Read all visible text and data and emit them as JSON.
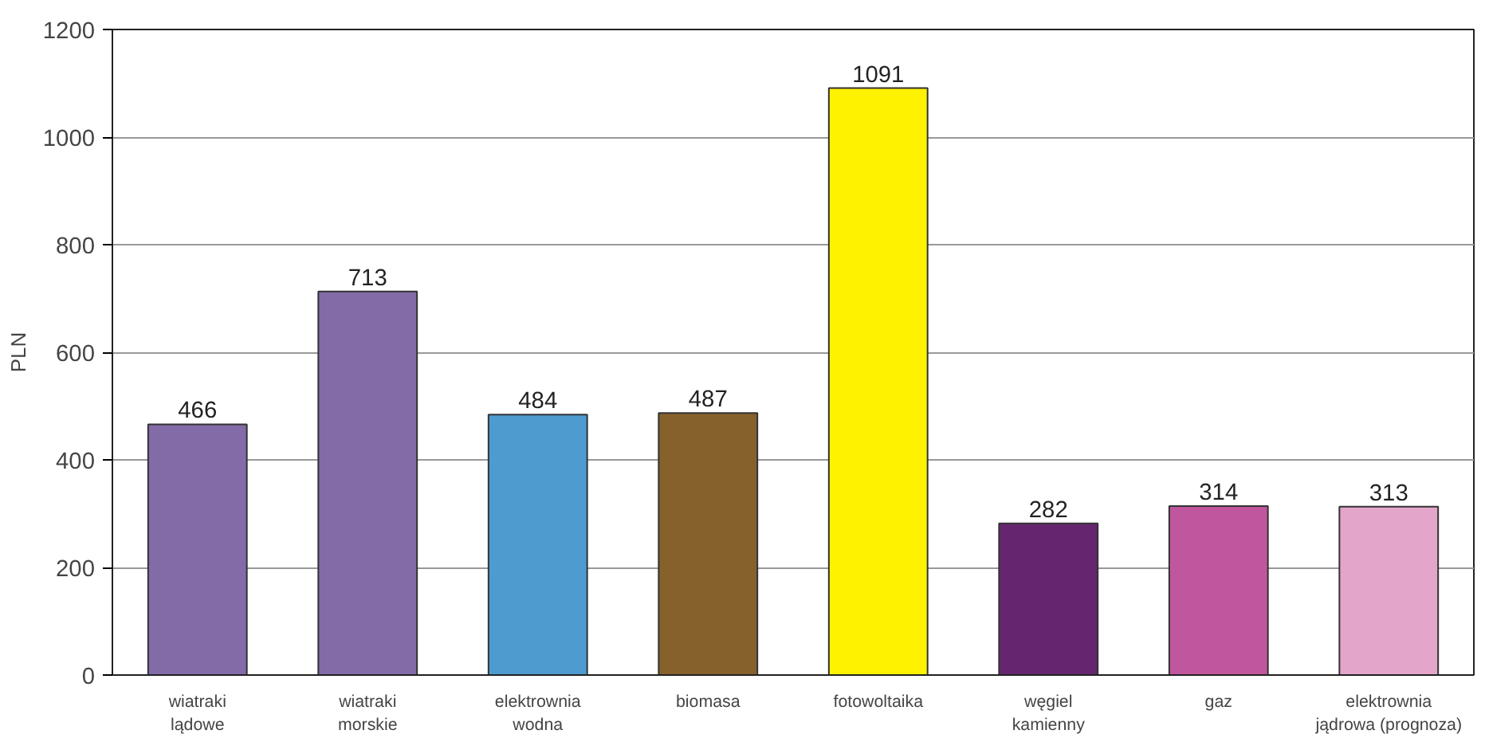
{
  "chart_data": {
    "type": "bar",
    "ylabel": "PLN",
    "categories": [
      "wiatraki lądowe",
      "wiatraki morskie",
      "elektrownia wodna",
      "biomasa",
      "fotowoltaika",
      "węgiel kamienny",
      "gaz",
      "elektrownia jądrowa (prognoza)"
    ],
    "values": [
      466,
      713,
      484,
      487,
      1091,
      282,
      314,
      313
    ],
    "colors": [
      "#836ba8",
      "#836ba8",
      "#4e9bd0",
      "#87612b",
      "#fff200",
      "#66266f",
      "#c0579e",
      "#e4a5cb"
    ],
    "ylim": [
      0,
      1200
    ],
    "yticks": [
      0,
      200,
      400,
      600,
      800,
      1000,
      1200
    ],
    "grid": "y",
    "data_labels": true
  }
}
